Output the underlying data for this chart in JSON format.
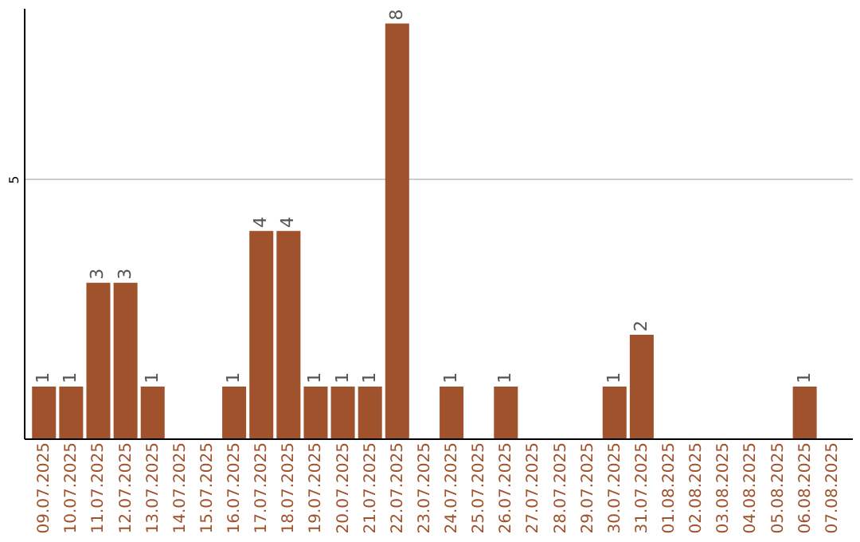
{
  "chart_data": {
    "type": "bar",
    "categories": [
      "09.07.2025",
      "10.07.2025",
      "11.07.2025",
      "12.07.2025",
      "13.07.2025",
      "14.07.2025",
      "15.07.2025",
      "16.07.2025",
      "17.07.2025",
      "18.07.2025",
      "19.07.2025",
      "20.07.2025",
      "21.07.2025",
      "22.07.2025",
      "23.07.2025",
      "24.07.2025",
      "25.07.2025",
      "26.07.2025",
      "27.07.2025",
      "28.07.2025",
      "29.07.2025",
      "30.07.2025",
      "31.07.2025",
      "01.08.2025",
      "02.08.2025",
      "03.08.2025",
      "04.08.2025",
      "05.08.2025",
      "06.08.2025",
      "07.08.2025"
    ],
    "values": [
      1,
      1,
      3,
      3,
      1,
      null,
      null,
      1,
      4,
      4,
      1,
      1,
      1,
      8,
      null,
      1,
      null,
      1,
      null,
      null,
      null,
      1,
      2,
      null,
      null,
      null,
      null,
      null,
      1,
      null
    ],
    "color": "#a0522d",
    "ylim": [
      0,
      8.3
    ],
    "yticks": [
      5
    ],
    "grid": "y",
    "data_labels": true
  }
}
